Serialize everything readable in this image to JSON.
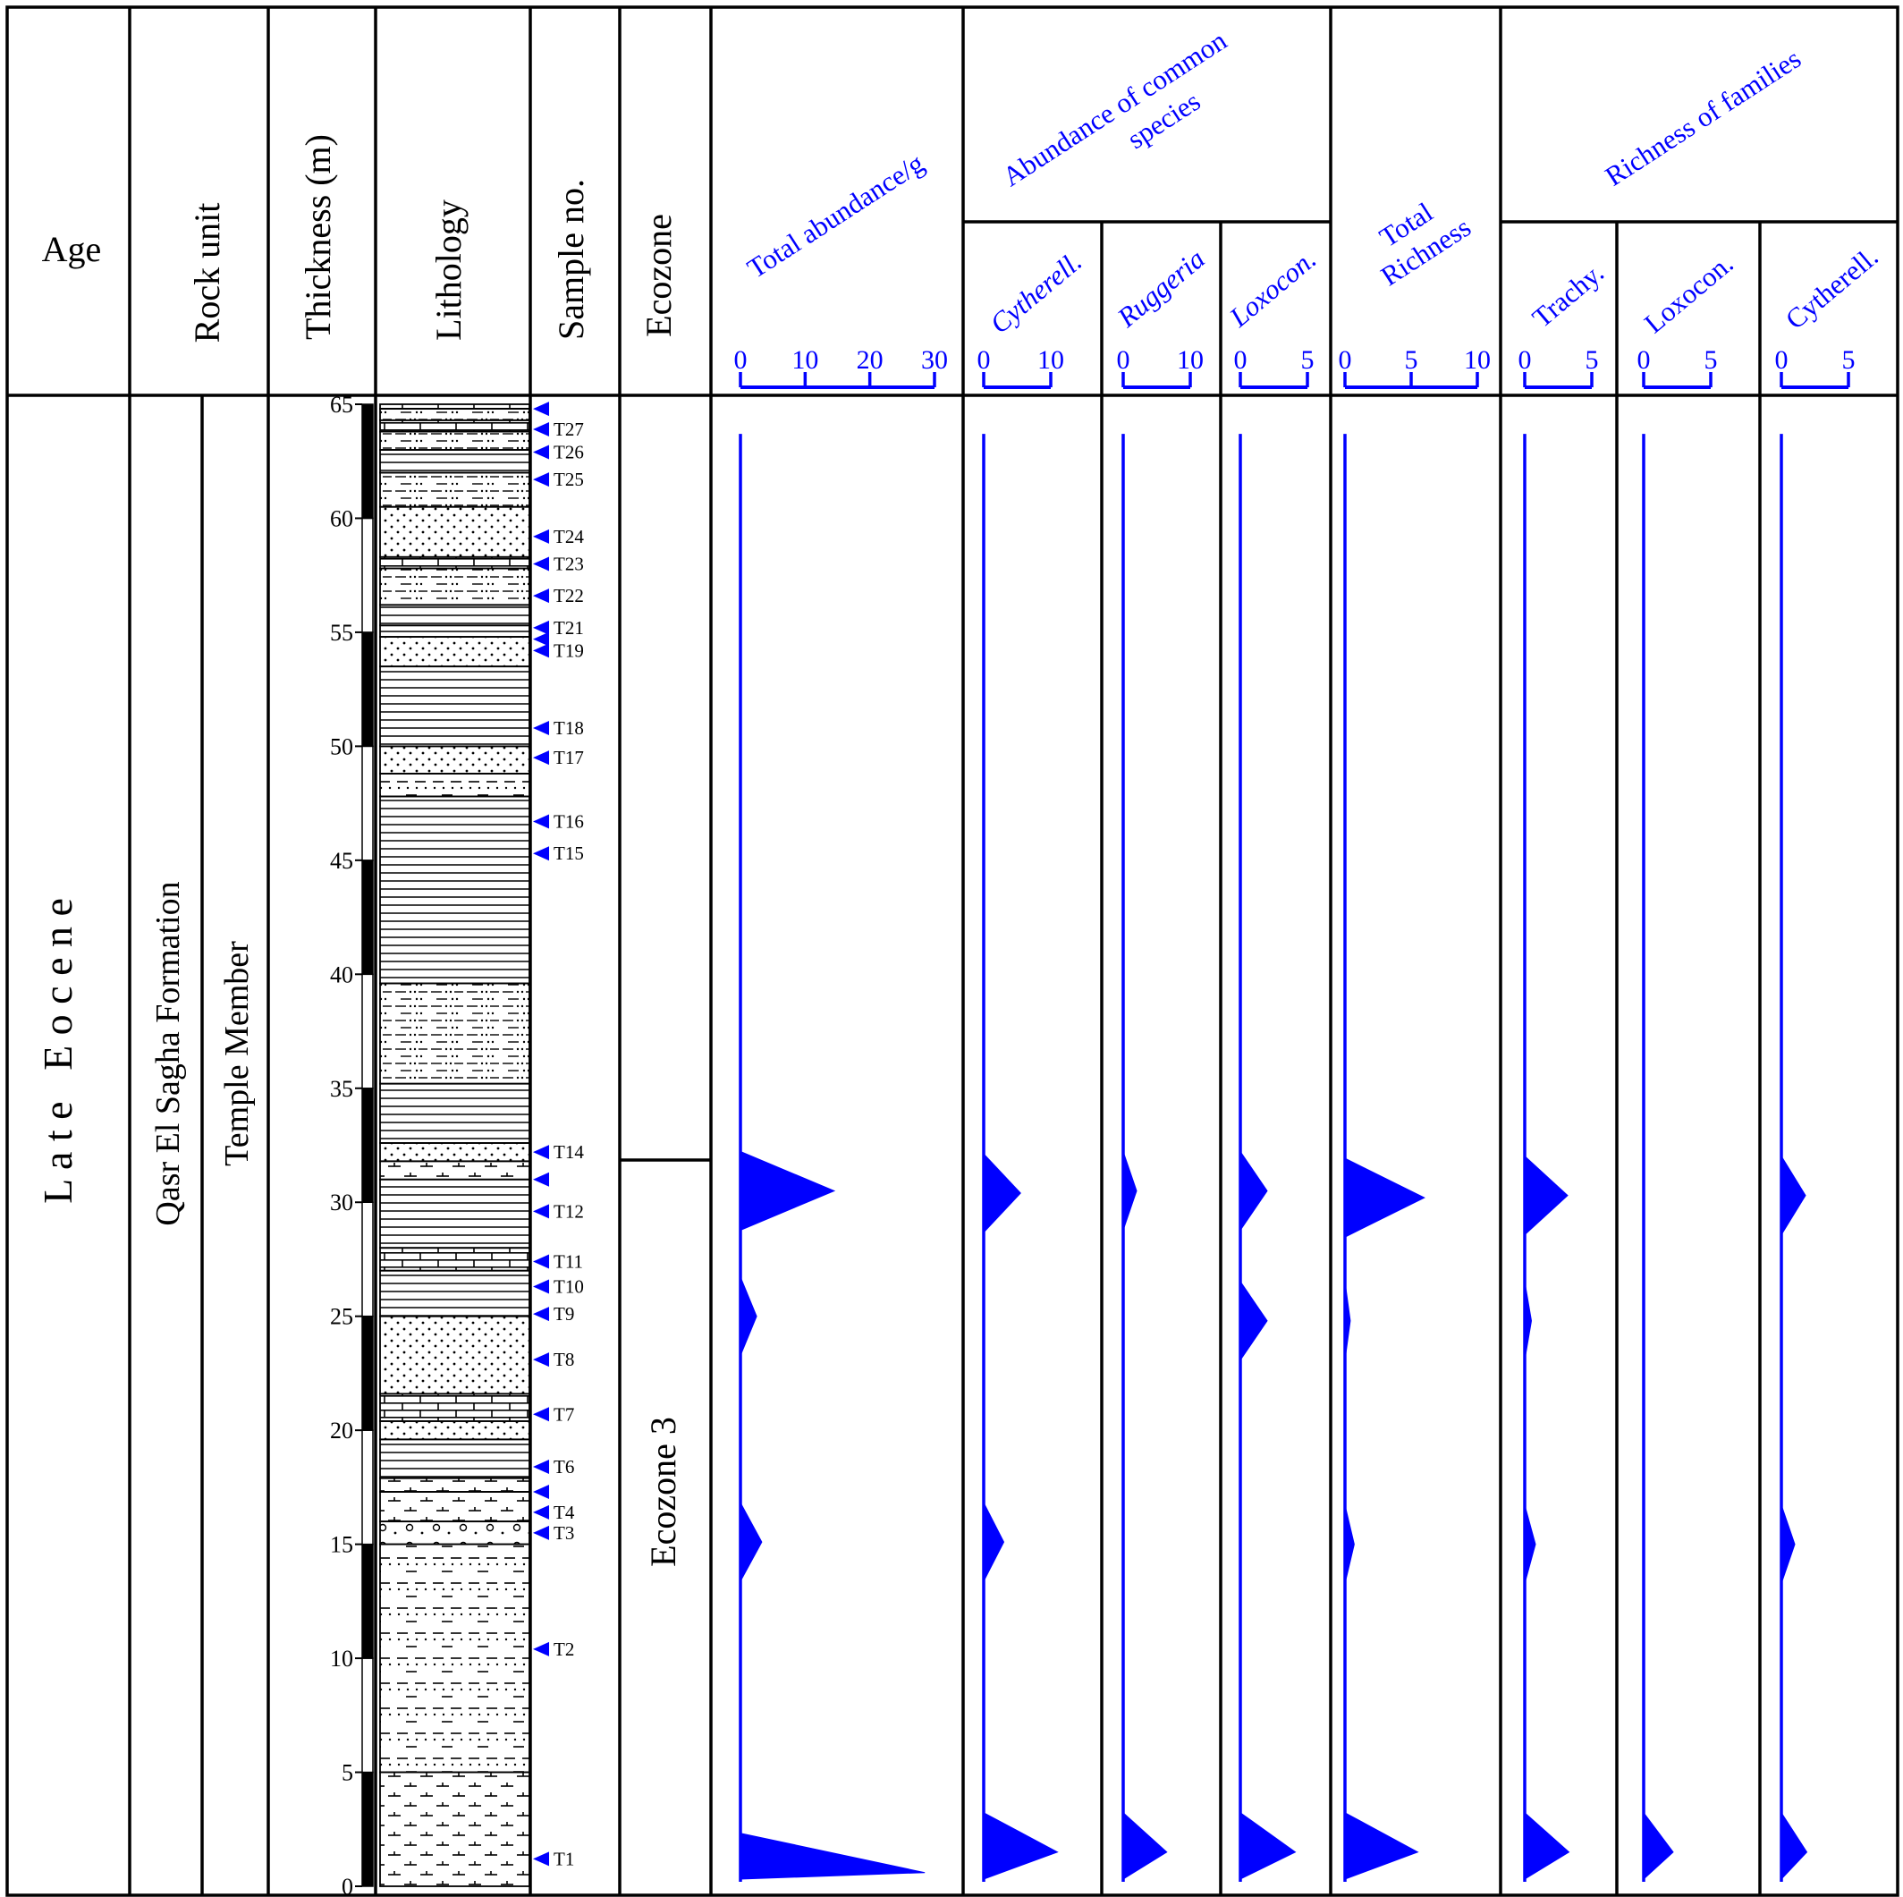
{
  "headers": {
    "age": "Age",
    "rock_unit": "Rock unit",
    "thickness": "Thickness (m)",
    "lithology": "Lithology",
    "sample_no": "Sample no.",
    "ecozone": "Ecozone",
    "total_abundance": "Total abundance/g",
    "abundance_common_line1": "Abundance of common",
    "abundance_common_line2": "species",
    "total_richness_line1": "Total",
    "total_richness_line2": "Richness",
    "richness_families": "Richness of families",
    "cytherell": "Cytherell.",
    "ruggeria": "Ruggeria",
    "loxocon": "Loxocon.",
    "trachy": "Trachy.",
    "loxocon_fam": "Loxocon.",
    "cytherell_fam": "Cytherell."
  },
  "age_label": "L a t e   E o c e n e",
  "formation": "Qasr El Sagha Formation",
  "member": "Temple Member",
  "ecozone_label": "Ecozone 3",
  "thickness_ticks": [
    "0",
    "5",
    "10",
    "15",
    "20",
    "25",
    "30",
    "35",
    "40",
    "45",
    "50",
    "55",
    "60",
    "65"
  ],
  "samples": [
    {
      "label": "T1",
      "m": 1.2
    },
    {
      "label": "T2",
      "m": 10.4
    },
    {
      "label": "T3",
      "m": 15.5
    },
    {
      "label": "T4",
      "m": 16.4
    },
    {
      "label": "",
      "m": 17.3
    },
    {
      "label": "T6",
      "m": 18.4
    },
    {
      "label": "T7",
      "m": 20.7
    },
    {
      "label": "T8",
      "m": 23.1
    },
    {
      "label": "T9",
      "m": 25.1
    },
    {
      "label": "T10",
      "m": 26.3
    },
    {
      "label": "T11",
      "m": 27.4
    },
    {
      "label": "T12",
      "m": 29.6
    },
    {
      "label": "",
      "m": 31.0
    },
    {
      "label": "T14",
      "m": 32.2
    },
    {
      "label": "T15",
      "m": 45.3
    },
    {
      "label": "T16",
      "m": 46.7
    },
    {
      "label": "T17",
      "m": 49.5
    },
    {
      "label": "T18",
      "m": 50.8
    },
    {
      "label": "T19",
      "m": 54.2
    },
    {
      "label": "",
      "m": 54.7
    },
    {
      "label": "T21",
      "m": 55.2
    },
    {
      "label": "T22",
      "m": 56.6
    },
    {
      "label": "T23",
      "m": 58.0
    },
    {
      "label": "T24",
      "m": 59.2
    },
    {
      "label": "T25",
      "m": 61.7
    },
    {
      "label": "T26",
      "m": 62.9
    },
    {
      "label": "T27",
      "m": 63.9
    },
    {
      "label": "",
      "m": 64.8
    }
  ],
  "chart_data": {
    "type": "area",
    "y_label": "Thickness (m)",
    "ylim": [
      0,
      65
    ],
    "series": [
      {
        "name": "Total abundance/g",
        "axis_ticks": [
          "0",
          "10",
          "20",
          "30"
        ],
        "xlim": [
          0,
          30
        ],
        "peaks": [
          {
            "m": 0.6,
            "value": 28.5
          },
          {
            "m": 15.1,
            "value": 3.3
          },
          {
            "m": 25.0,
            "value": 2.5
          },
          {
            "m": 30.5,
            "value": 14.5
          }
        ]
      },
      {
        "name": "Cytherell.",
        "axis_ticks": [
          "0",
          "10"
        ],
        "xlim": [
          0,
          10
        ],
        "peaks": [
          {
            "m": 1.5,
            "value": 11.0
          },
          {
            "m": 15.1,
            "value": 3.0
          },
          {
            "m": 30.4,
            "value": 5.5
          }
        ]
      },
      {
        "name": "Ruggeria",
        "axis_ticks": [
          "0",
          "10"
        ],
        "xlim": [
          0,
          10
        ],
        "peaks": [
          {
            "m": 1.5,
            "value": 6.5
          },
          {
            "m": 30.5,
            "value": 2.0
          }
        ]
      },
      {
        "name": "Loxocon.",
        "axis_ticks": [
          "0",
          "5"
        ],
        "xlim": [
          0,
          5
        ],
        "peaks": [
          {
            "m": 1.5,
            "value": 4.1
          },
          {
            "m": 24.8,
            "value": 2.0
          },
          {
            "m": 30.5,
            "value": 2.0
          }
        ]
      },
      {
        "name": "Total Richness",
        "axis_ticks": [
          "0",
          "5",
          "10"
        ],
        "xlim": [
          0,
          10
        ],
        "peaks": [
          {
            "m": 1.5,
            "value": 5.5
          },
          {
            "m": 15.0,
            "value": 0.7
          },
          {
            "m": 24.8,
            "value": 0.4
          },
          {
            "m": 30.2,
            "value": 6.0
          }
        ]
      },
      {
        "name": "Trachy.",
        "axis_ticks": [
          "0",
          "5"
        ],
        "xlim": [
          0,
          5
        ],
        "peaks": [
          {
            "m": 1.5,
            "value": 3.3
          },
          {
            "m": 15.0,
            "value": 0.8
          },
          {
            "m": 24.8,
            "value": 0.5
          },
          {
            "m": 30.3,
            "value": 3.2
          }
        ]
      },
      {
        "name": "Loxocon.",
        "axis_ticks": [
          "0",
          "5"
        ],
        "xlim": [
          0,
          5
        ],
        "peaks": [
          {
            "m": 1.5,
            "value": 2.2
          }
        ]
      },
      {
        "name": "Cytherell.",
        "axis_ticks": [
          "0",
          "5"
        ],
        "xlim": [
          0,
          5
        ],
        "peaks": [
          {
            "m": 1.5,
            "value": 1.9
          },
          {
            "m": 15.0,
            "value": 1.0
          },
          {
            "m": 30.3,
            "value": 1.8
          }
        ]
      }
    ]
  }
}
